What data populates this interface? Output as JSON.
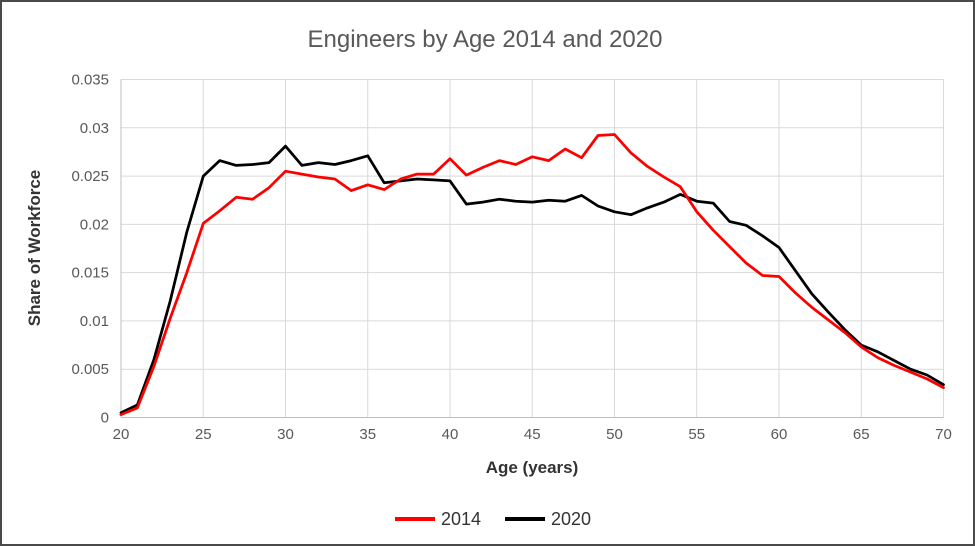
{
  "chart_data": {
    "type": "line",
    "title": "Engineers by Age 2014 and 2020",
    "xlabel": "Age (years)",
    "ylabel": "Share of Workforce",
    "xlim": [
      20,
      70
    ],
    "ylim": [
      0,
      0.035
    ],
    "grid": true,
    "legend_position": "bottom",
    "xticks": [
      20,
      25,
      30,
      35,
      40,
      45,
      50,
      55,
      60,
      65,
      70
    ],
    "xtick_labels": [
      "20",
      "25",
      "30",
      "35",
      "40",
      "45",
      "50",
      "55",
      "60",
      "65",
      "70"
    ],
    "yticks": [
      0.035,
      0.03,
      0.025,
      0.02,
      0.015,
      0.01,
      0.005,
      0
    ],
    "ytick_labels": [
      "0.035",
      "0.03",
      "0.025",
      "0.02",
      "0.015",
      "0.01",
      "0.005",
      "0"
    ],
    "x": [
      20,
      21,
      22,
      23,
      24,
      25,
      26,
      27,
      28,
      29,
      30,
      31,
      32,
      33,
      34,
      35,
      36,
      37,
      38,
      39,
      40,
      41,
      42,
      43,
      44,
      45,
      46,
      47,
      48,
      49,
      50,
      51,
      52,
      53,
      54,
      55,
      56,
      57,
      58,
      59,
      60,
      61,
      62,
      63,
      64,
      65,
      66,
      67,
      68,
      69,
      70
    ],
    "series": [
      {
        "name": "2020",
        "color": "#000000",
        "values": [
          0.0005,
          0.0013,
          0.006,
          0.0121,
          0.0192,
          0.025,
          0.0266,
          0.0261,
          0.0262,
          0.0264,
          0.0281,
          0.0261,
          0.0264,
          0.0262,
          0.0266,
          0.0271,
          0.0243,
          0.0245,
          0.0247,
          0.0246,
          0.0245,
          0.0221,
          0.0223,
          0.0226,
          0.0224,
          0.0223,
          0.0225,
          0.0224,
          0.023,
          0.0219,
          0.0213,
          0.021,
          0.0217,
          0.0223,
          0.0231,
          0.0224,
          0.0222,
          0.0203,
          0.0199,
          0.0188,
          0.0176,
          0.0152,
          0.0128,
          0.0109,
          0.0091,
          0.0075,
          0.0068,
          0.0059,
          0.005,
          0.0044,
          0.0034
        ]
      },
      {
        "name": "2014",
        "color": "#FF0000",
        "values": [
          0.0003,
          0.001,
          0.0053,
          0.0103,
          0.015,
          0.0201,
          0.0214,
          0.0228,
          0.0226,
          0.0238,
          0.0255,
          0.0252,
          0.0249,
          0.0247,
          0.0235,
          0.0241,
          0.0236,
          0.0247,
          0.0252,
          0.0252,
          0.0268,
          0.0251,
          0.0259,
          0.0266,
          0.0262,
          0.027,
          0.0266,
          0.0278,
          0.0269,
          0.0292,
          0.0293,
          0.0274,
          0.026,
          0.0249,
          0.0239,
          0.0213,
          0.0194,
          0.0177,
          0.016,
          0.0147,
          0.0146,
          0.0129,
          0.0114,
          0.0101,
          0.0088,
          0.0073,
          0.0062,
          0.0054,
          0.0047,
          0.004,
          0.0031
        ]
      }
    ],
    "legend": [
      "2014",
      "2020"
    ]
  }
}
